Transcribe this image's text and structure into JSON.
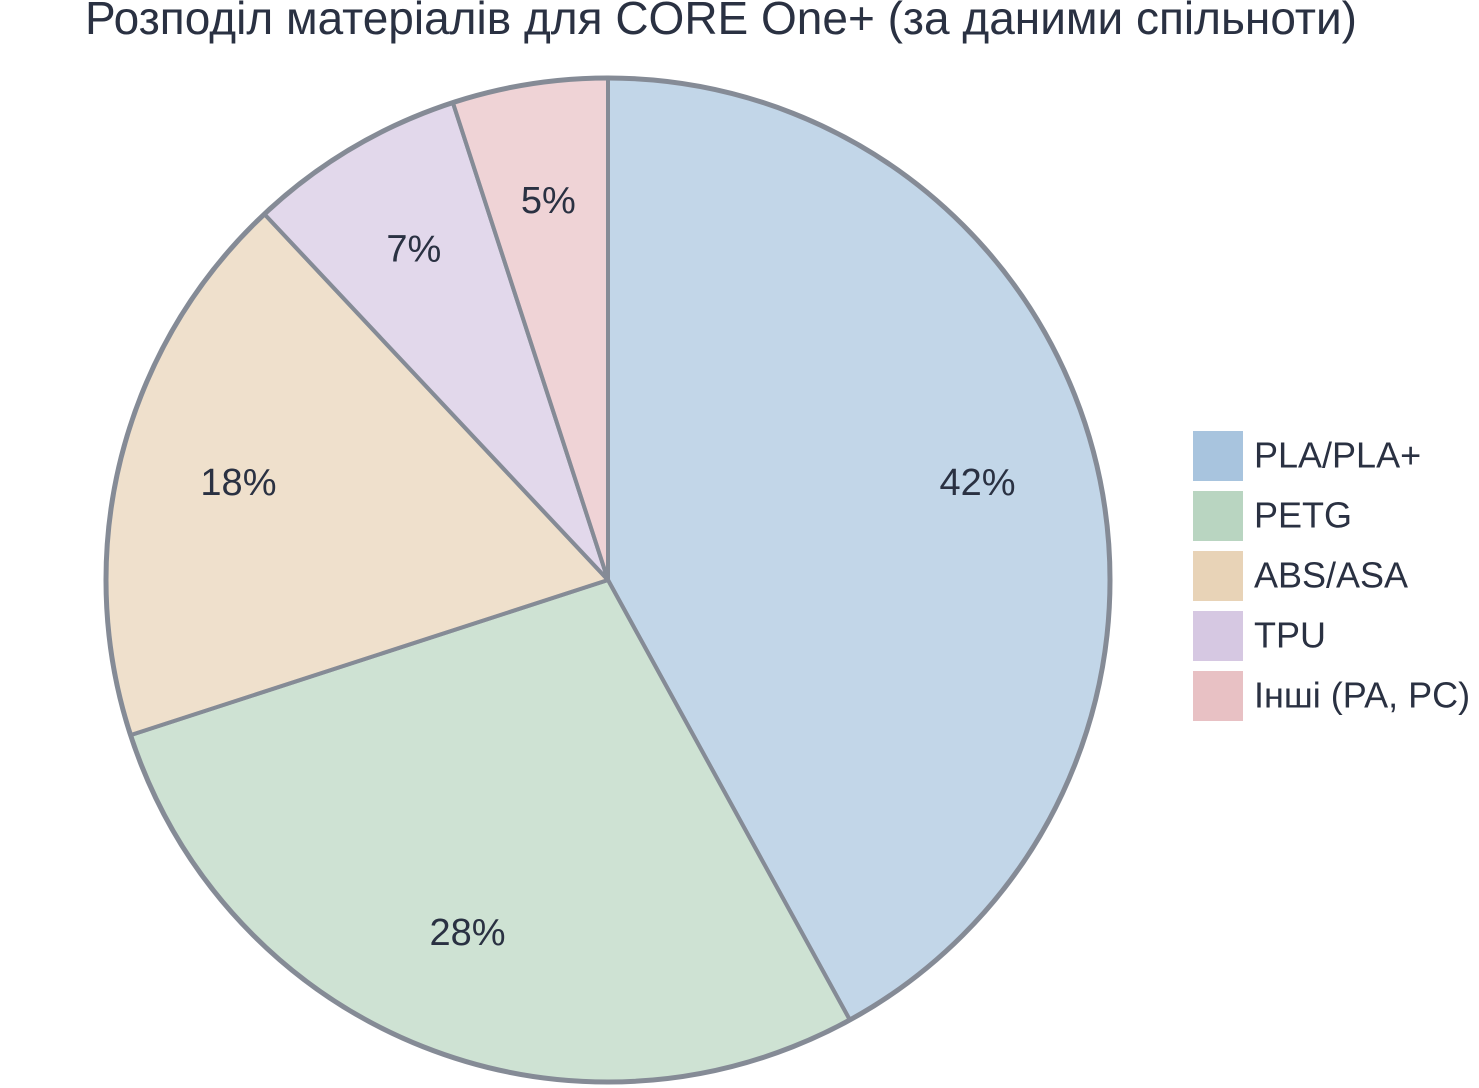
{
  "chart_data": {
    "type": "pie",
    "title": "Розподіл матеріалів для CORE One+ (за даними спільноти)",
    "categories": [
      "PLA/PLA+",
      "PETG",
      "ABS/ASA",
      "TPU",
      "Інші (PA, PC)"
    ],
    "values": [
      42,
      28,
      18,
      7,
      5
    ],
    "value_labels": [
      "42%",
      "28%",
      "18%",
      "7%",
      "5%"
    ],
    "colors": [
      "#a8c4de",
      "#b9d5c1",
      "#e8d3b7",
      "#d6c8e2",
      "#e8c1c4"
    ],
    "legend": "right"
  }
}
